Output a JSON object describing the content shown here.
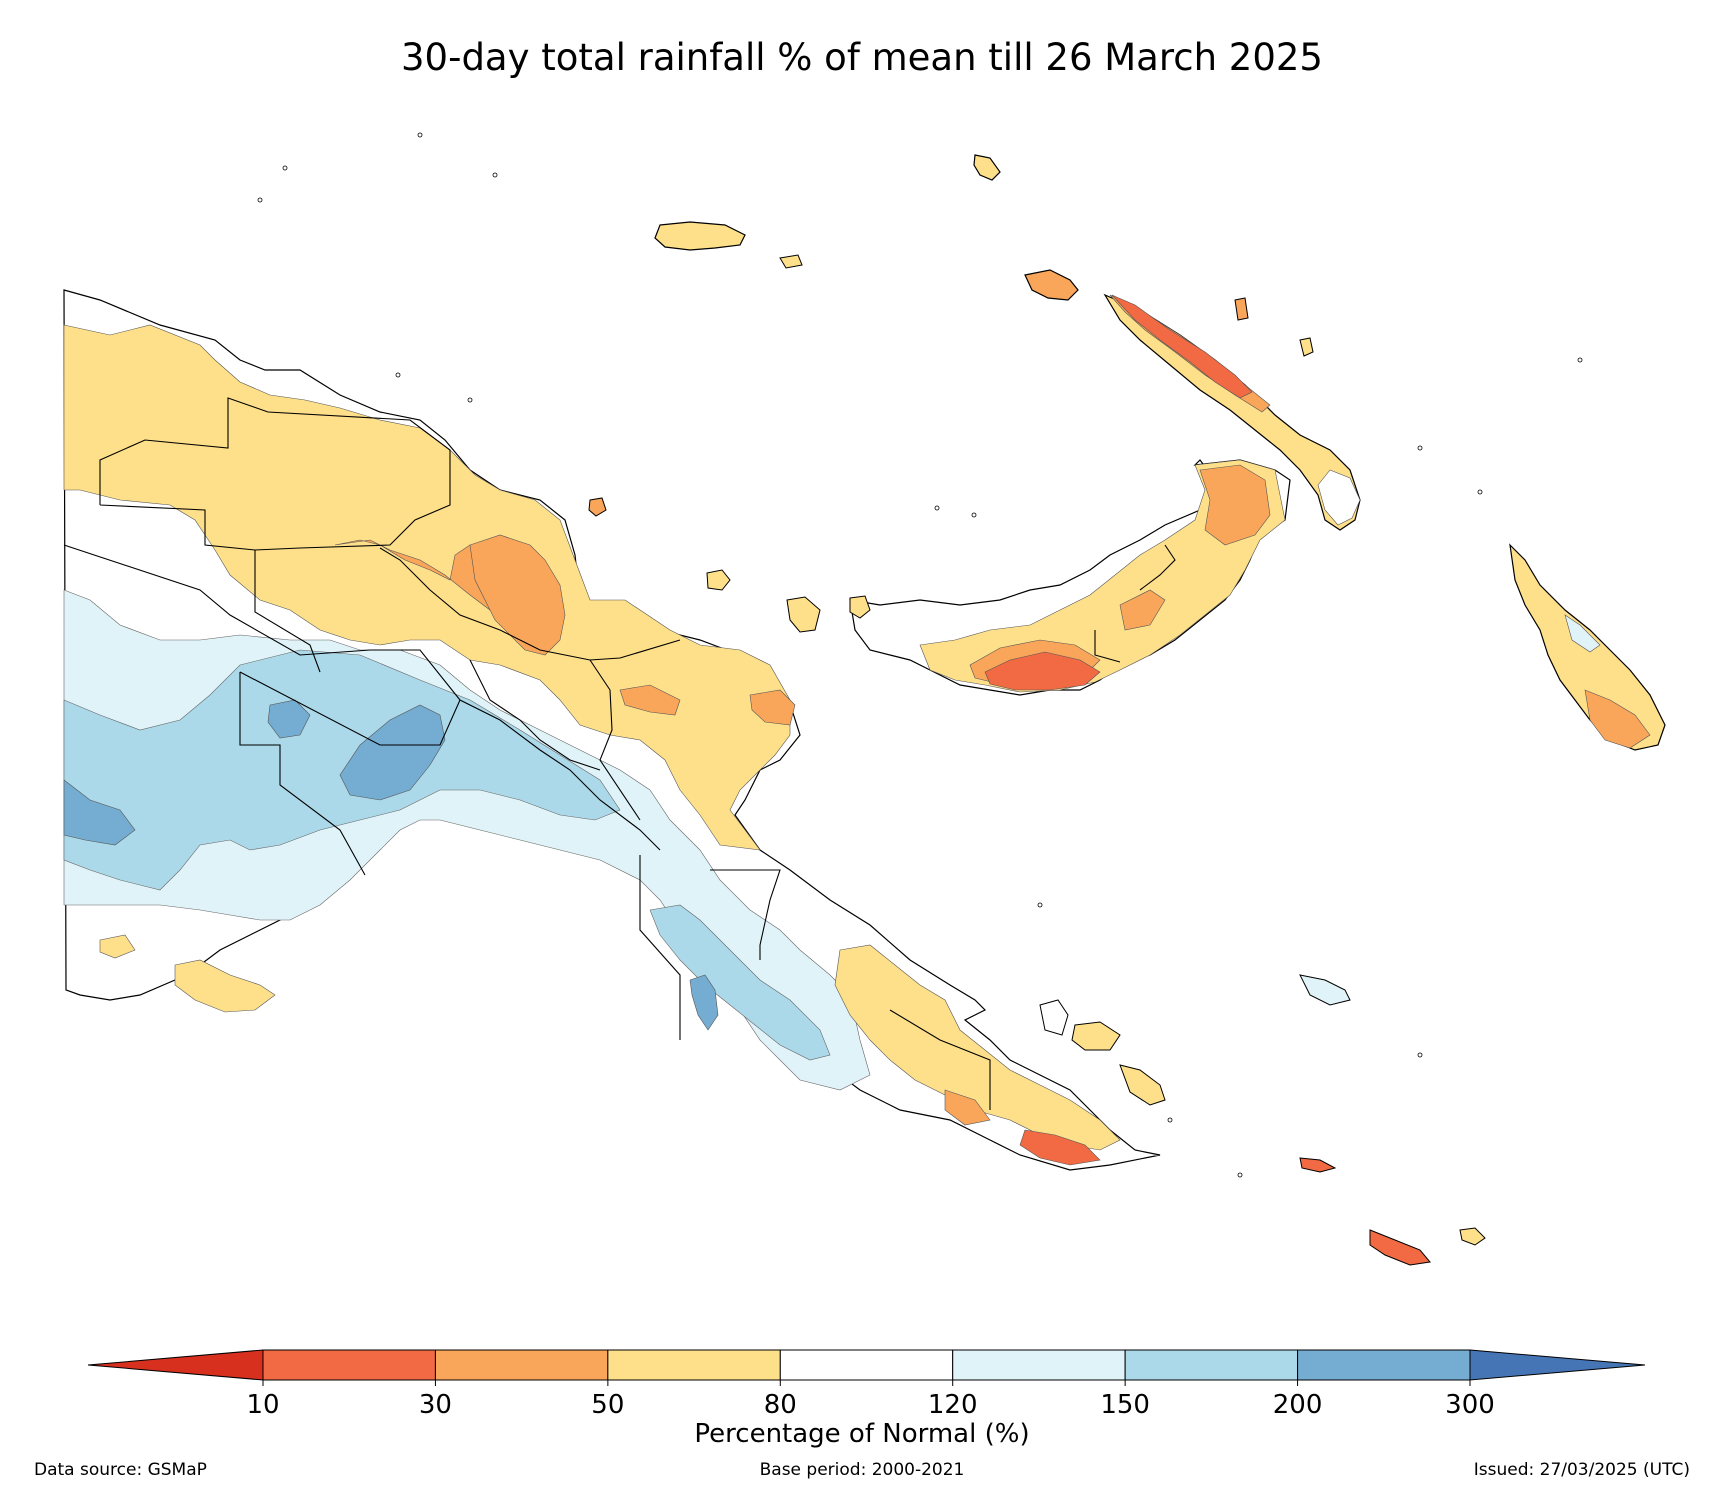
{
  "title": "30-day total rainfall % of mean till 26 March 2025",
  "legend": {
    "title": "Percentage of Normal (%)",
    "ticks": [
      "10",
      "30",
      "50",
      "80",
      "120",
      "150",
      "200",
      "300"
    ],
    "bins": [
      {
        "range": "<10",
        "color": "#d7301f"
      },
      {
        "range": "10-30",
        "color": "#f16a43"
      },
      {
        "range": "30-50",
        "color": "#f9a65a"
      },
      {
        "range": "50-80",
        "color": "#fee08b"
      },
      {
        "range": "80-120",
        "color": "#ffffff"
      },
      {
        "range": "120-150",
        "color": "#e0f3f8"
      },
      {
        "range": "150-200",
        "color": "#abd9e9"
      },
      {
        "range": "200-300",
        "color": "#74add1"
      },
      {
        "range": ">300",
        "color": "#4575b4"
      }
    ]
  },
  "footer": {
    "source": "Data source: GSMaP",
    "base_period": "Base period: 2000-2021",
    "issued": "Issued: 27/03/2025 (UTC)"
  }
}
